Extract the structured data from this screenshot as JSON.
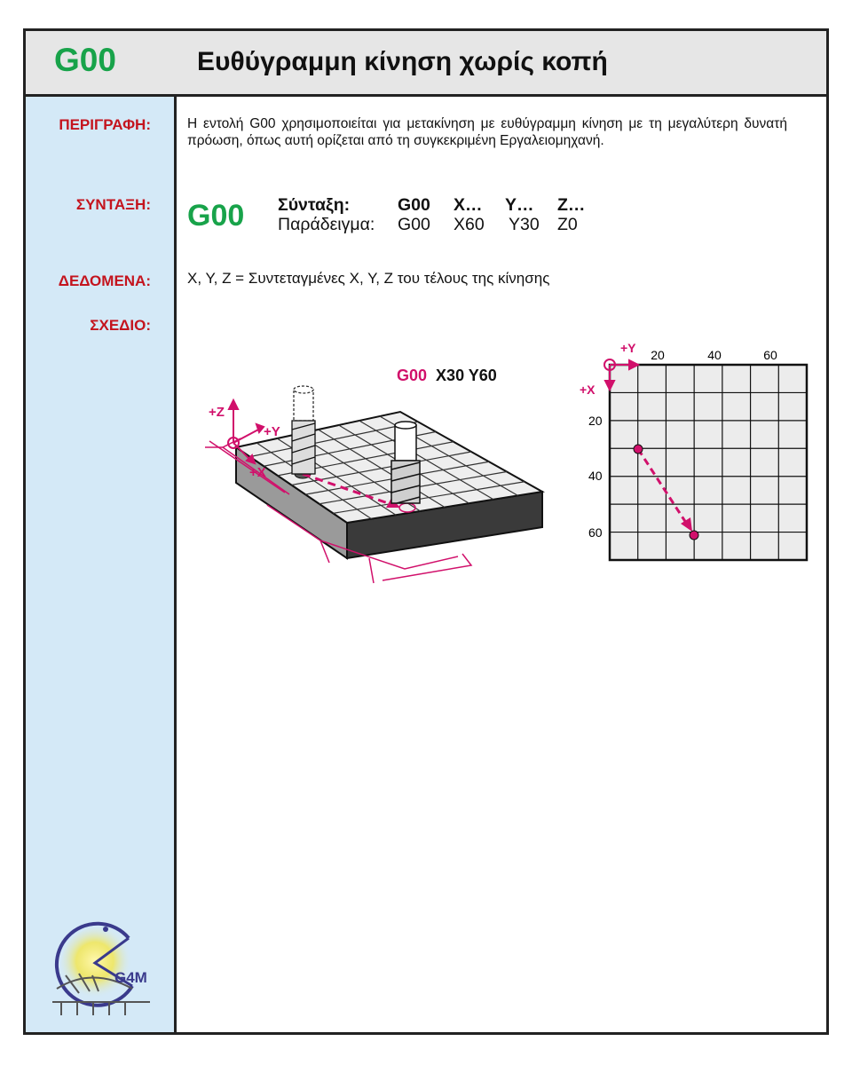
{
  "header": {
    "code": "G00",
    "title": "Ευθύγραμμη κίνηση χωρίς κοπή"
  },
  "labels": {
    "description": "ΠΕΡΙΓΡΑΦΗ:",
    "syntax": "ΣΥΝΤΑΞΗ:",
    "data": "ΔΕΔΟΜΕΝΑ:",
    "drawing": "ΣΧΕΔΙΟ:"
  },
  "description_text": "Η εντολή G00 χρησιμοποιείται για μετακίνηση με ευθύγραμμη κίνηση με τη μεγαλύτερη δυνατή πρόωση, όπως αυτή ορίζεται από τη συγκεκριμένη Εργαλειομηχανή.",
  "syntax": {
    "code": "G00",
    "syntax_label": "Σύνταξη:",
    "syntax_tokens": [
      "G00",
      "X…",
      "Y…",
      "Z…"
    ],
    "example_label": "Παράδειγμα:",
    "example_tokens": [
      "G00",
      "X60",
      "Y30",
      "Z0"
    ]
  },
  "data_text": "X, Y, Z = Συντεταγμένες X, Y, Z του τέλους της κίνησης",
  "drawing": {
    "iso_code": "G00",
    "iso_coords": "X30 Y60",
    "iso_axes": {
      "z": "+Z",
      "y": "+Y",
      "x": "+X"
    },
    "grid_axes": {
      "y": "+Y",
      "x": "+X"
    },
    "grid_top_ticks": [
      "20",
      "40",
      "60"
    ],
    "grid_left_ticks": [
      "20",
      "40",
      "60"
    ]
  },
  "logo": {
    "text": "G4M"
  },
  "colors": {
    "accent_green": "#18a34a",
    "label_red": "#c4141e",
    "magenta": "#d1106b",
    "sidebar": "#d4e9f7"
  }
}
